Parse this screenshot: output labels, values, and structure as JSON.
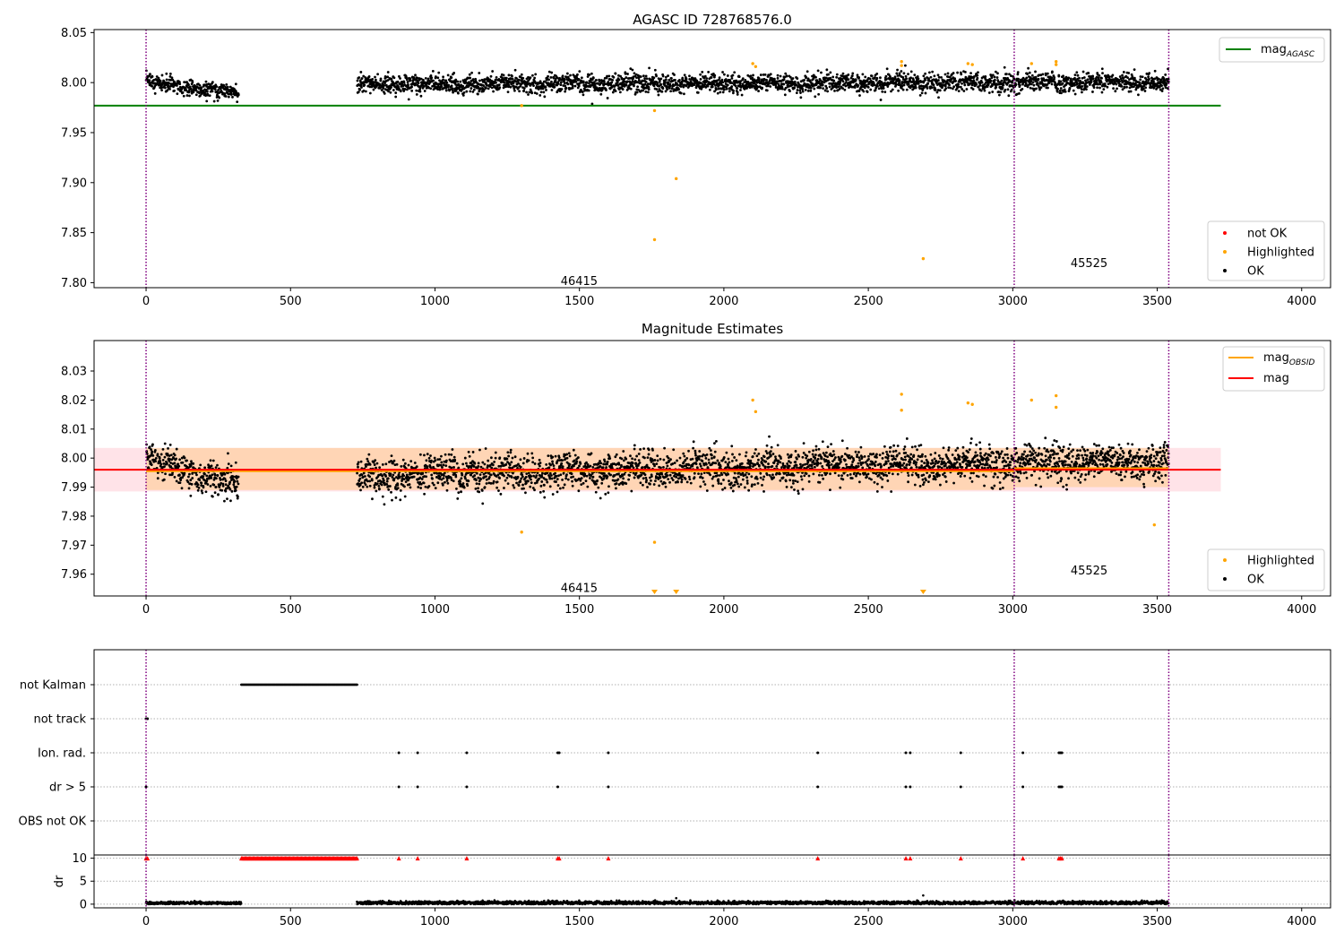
{
  "chart_data": [
    {
      "type": "scatter",
      "title": "AGASC ID 728768576.0",
      "xlim": [
        -180,
        4100
      ],
      "ylim": [
        7.795,
        8.053
      ],
      "xticks": [
        0,
        500,
        1000,
        1500,
        2000,
        2500,
        3000,
        3500,
        4000
      ],
      "yticks": [
        7.8,
        7.85,
        7.9,
        7.95,
        8.0,
        8.05
      ],
      "ytick_labels": [
        "7.80",
        "7.85",
        "7.90",
        "7.95",
        "8.00",
        "8.05"
      ],
      "reference_line": {
        "name": "mag",
        "subscript": "AGASC",
        "value": 7.977,
        "x_range": [
          -180,
          3720
        ],
        "color": "#008000"
      },
      "vlines": [
        0,
        3005,
        3540
      ],
      "vline_color": "#800080",
      "segments": [
        {
          "x_start": 0,
          "x_end": 320,
          "center": 8.0,
          "slope": -3.12e-05,
          "spread": 0.013
        },
        {
          "x_start": 730,
          "x_end": 3540,
          "center": 7.998,
          "slope": 1e-06,
          "spread": 0.014
        }
      ],
      "highlighted": [
        {
          "x": 1300,
          "y": 7.977
        },
        {
          "x": 1760,
          "y": 7.972
        },
        {
          "x": 1760,
          "y": 7.843
        },
        {
          "x": 1835,
          "y": 7.904
        },
        {
          "x": 2100,
          "y": 8.019
        },
        {
          "x": 2110,
          "y": 8.016
        },
        {
          "x": 2615,
          "y": 8.021
        },
        {
          "x": 2615,
          "y": 8.017
        },
        {
          "x": 2690,
          "y": 7.824
        },
        {
          "x": 2845,
          "y": 8.019
        },
        {
          "x": 2860,
          "y": 8.018
        },
        {
          "x": 3065,
          "y": 8.019
        },
        {
          "x": 3150,
          "y": 8.021
        },
        {
          "x": 3150,
          "y": 8.018
        }
      ],
      "not_ok_points": [],
      "annotations": [
        {
          "text": "46415",
          "x": 1435,
          "y": 7.802
        },
        {
          "text": "45525",
          "x": 3200,
          "y": 7.82
        }
      ],
      "legend_top": [
        {
          "label": "mag",
          "subscript": "AGASC",
          "color": "#008000",
          "kind": "line"
        }
      ],
      "legend_bottom": [
        {
          "label": "not OK",
          "color": "#ff0000",
          "kind": "point"
        },
        {
          "label": "Highlighted",
          "color": "#ffa500",
          "kind": "point"
        },
        {
          "label": "OK",
          "color": "#000000",
          "kind": "point"
        }
      ],
      "colors": {
        "ok": "#000000",
        "highlighted": "#ffa500",
        "not_ok": "#ff0000"
      }
    },
    {
      "type": "scatter",
      "title": "Magnitude Estimates",
      "xlim": [
        -180,
        4100
      ],
      "ylim": [
        7.9525,
        8.0405
      ],
      "xticks": [
        0,
        500,
        1000,
        1500,
        2000,
        2500,
        3000,
        3500,
        4000
      ],
      "yticks": [
        7.96,
        7.97,
        7.98,
        7.99,
        8.0,
        8.01,
        8.02,
        8.03
      ],
      "ytick_labels": [
        "7.96",
        "7.97",
        "7.98",
        "7.99",
        "8.00",
        "8.01",
        "8.02",
        "8.03"
      ],
      "mag_line": {
        "name": "mag",
        "value": 7.996,
        "band": [
          7.9885,
          8.0035
        ],
        "x_range": [
          -180,
          3720
        ],
        "color": "#ff0000",
        "band_color": "#ffc0cb"
      },
      "obsid_segments": [
        {
          "name": "mag",
          "subscript": "OBSID",
          "x_start": 0,
          "x_end": 3005,
          "value": 7.9955,
          "band": [
            7.989,
            8.0035
          ]
        },
        {
          "name": "mag",
          "subscript": "OBSID",
          "x_start": 3005,
          "x_end": 3540,
          "value": 7.9965,
          "band": [
            7.99,
            8.0035
          ]
        }
      ],
      "obsid_color": "#ffa500",
      "vlines": [
        0,
        3005,
        3540
      ],
      "segments": [
        {
          "x_start": 0,
          "x_end": 320,
          "center": 8.0,
          "slope": -3.12e-05,
          "spread": 0.009
        },
        {
          "x_start": 730,
          "x_end": 3540,
          "center": 7.994,
          "slope": 1.8e-06,
          "spread": 0.0095
        }
      ],
      "highlighted": [
        {
          "x": 1300,
          "y": 7.9745
        },
        {
          "x": 1760,
          "y": 7.971
        },
        {
          "x": 2100,
          "y": 8.02
        },
        {
          "x": 2110,
          "y": 8.016
        },
        {
          "x": 2615,
          "y": 8.022
        },
        {
          "x": 2615,
          "y": 8.0165
        },
        {
          "x": 2845,
          "y": 8.019
        },
        {
          "x": 2860,
          "y": 8.0185
        },
        {
          "x": 3065,
          "y": 8.02
        },
        {
          "x": 3150,
          "y": 8.0215
        },
        {
          "x": 3150,
          "y": 8.0175
        },
        {
          "x": 3490,
          "y": 7.977
        }
      ],
      "offscale_markers": [
        {
          "x": 1760
        },
        {
          "x": 1835
        },
        {
          "x": 2690
        }
      ],
      "annotations": [
        {
          "text": "46415",
          "x": 1435,
          "y": 7.9555
        },
        {
          "text": "45525",
          "x": 3200,
          "y": 7.9615
        }
      ],
      "legend_top": [
        {
          "label": "mag",
          "subscript": "OBSID",
          "color": "#ffa500",
          "kind": "line"
        },
        {
          "label": "mag",
          "subscript": "",
          "color": "#ff0000",
          "kind": "line"
        }
      ],
      "legend_bottom": [
        {
          "label": "Highlighted",
          "color": "#ffa500",
          "kind": "point"
        },
        {
          "label": "OK",
          "color": "#000000",
          "kind": "point"
        }
      ]
    },
    {
      "type": "scatter",
      "title": "",
      "xlim": [
        -180,
        4100
      ],
      "xticks": [
        0,
        500,
        1000,
        1500,
        2000,
        2500,
        3000,
        3500,
        4000
      ],
      "categories": [
        "not Kalman",
        "not track",
        "Ion. rad.",
        "dr > 5",
        "OBS not OK"
      ],
      "flag_points": {
        "not Kalman": {
          "ranges": [
            [
              330,
              730
            ]
          ]
        },
        "not track": {
          "points": [
            0,
            5
          ]
        },
        "Ion. rad.": {
          "points": [
            875,
            940,
            1110,
            1425,
            1430,
            1600,
            2325,
            2630,
            2645,
            2820,
            3035,
            3160,
            3165,
            3170
          ]
        },
        "dr > 5": {
          "points": [
            0,
            875,
            940,
            1110,
            1425,
            1600,
            2325,
            2630,
            2645,
            2820,
            3035,
            3160,
            3165,
            3170
          ]
        },
        "OBS not OK": {}
      },
      "vlines": [
        0,
        3005,
        3540
      ]
    },
    {
      "type": "scatter",
      "title": "",
      "ylabel": "dr",
      "xlim": [
        -180,
        4100
      ],
      "ylim": [
        -0.8,
        10.7
      ],
      "xticks": [
        0,
        500,
        1000,
        1500,
        2000,
        2500,
        3000,
        3500,
        4000
      ],
      "yticks": [
        0,
        5,
        10
      ],
      "clipped_markers": {
        "ranges": [
          [
            330,
            730
          ]
        ],
        "points": [
          0,
          5,
          875,
          940,
          1110,
          1425,
          1430,
          1600,
          2325,
          2630,
          2645,
          2820,
          3035,
          3160,
          3165,
          3170
        ],
        "color": "#ff0000",
        "value": 10
      },
      "segments": [
        {
          "x_start": 0,
          "x_end": 330,
          "center": 0.25,
          "spread": 0.25
        },
        {
          "x_start": 730,
          "x_end": 3540,
          "center": 0.3,
          "spread": 0.3
        }
      ],
      "outliers": [
        {
          "x": 1835,
          "y": 1.3
        },
        {
          "x": 2690,
          "y": 1.9
        }
      ],
      "vlines": [
        0,
        3005,
        3540
      ]
    }
  ]
}
